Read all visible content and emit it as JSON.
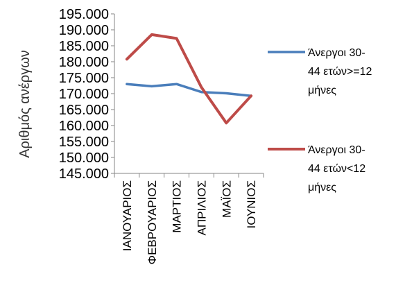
{
  "chart_data": {
    "type": "line",
    "title": "",
    "xlabel": "",
    "ylabel": "Αριθμός ανέργων",
    "categories": [
      "ΙΑΝΟΥΑΡΙΟΣ",
      "ΦΕΒΡΟΥΑΡΙΟΣ",
      "ΜΑΡΤΙΟΣ",
      "ΑΠΡΙΛΙΟΣ",
      "ΜΑΪΟΣ",
      "ΙΟΥΝΙΟΣ"
    ],
    "ylim": [
      145000,
      195000
    ],
    "yticks": [
      "195.000",
      "190.000",
      "185.000",
      "180.000",
      "175.000",
      "170.000",
      "165.000",
      "160.000",
      "155.000",
      "150.000",
      "145.000"
    ],
    "grid": false,
    "legend_position": "right",
    "series": [
      {
        "name": "Άνεργοι 30-44 ετών>=12 μήνες",
        "legend_lines": [
          "Άνεργοι 30-",
          "44  ετών>=12",
          "μήνες"
        ],
        "color": "#4a7ebb",
        "values": [
          173000,
          172300,
          173000,
          170500,
          170100,
          169300
        ]
      },
      {
        "name": "Άνεργοι 30-44 ετών<12 μήνες",
        "legend_lines": [
          "Άνεργοι 30-",
          "44 ετών<12",
          "μήνες"
        ],
        "color": "#be4b48",
        "values": [
          180800,
          188500,
          187300,
          172000,
          160800,
          169300
        ]
      }
    ]
  }
}
